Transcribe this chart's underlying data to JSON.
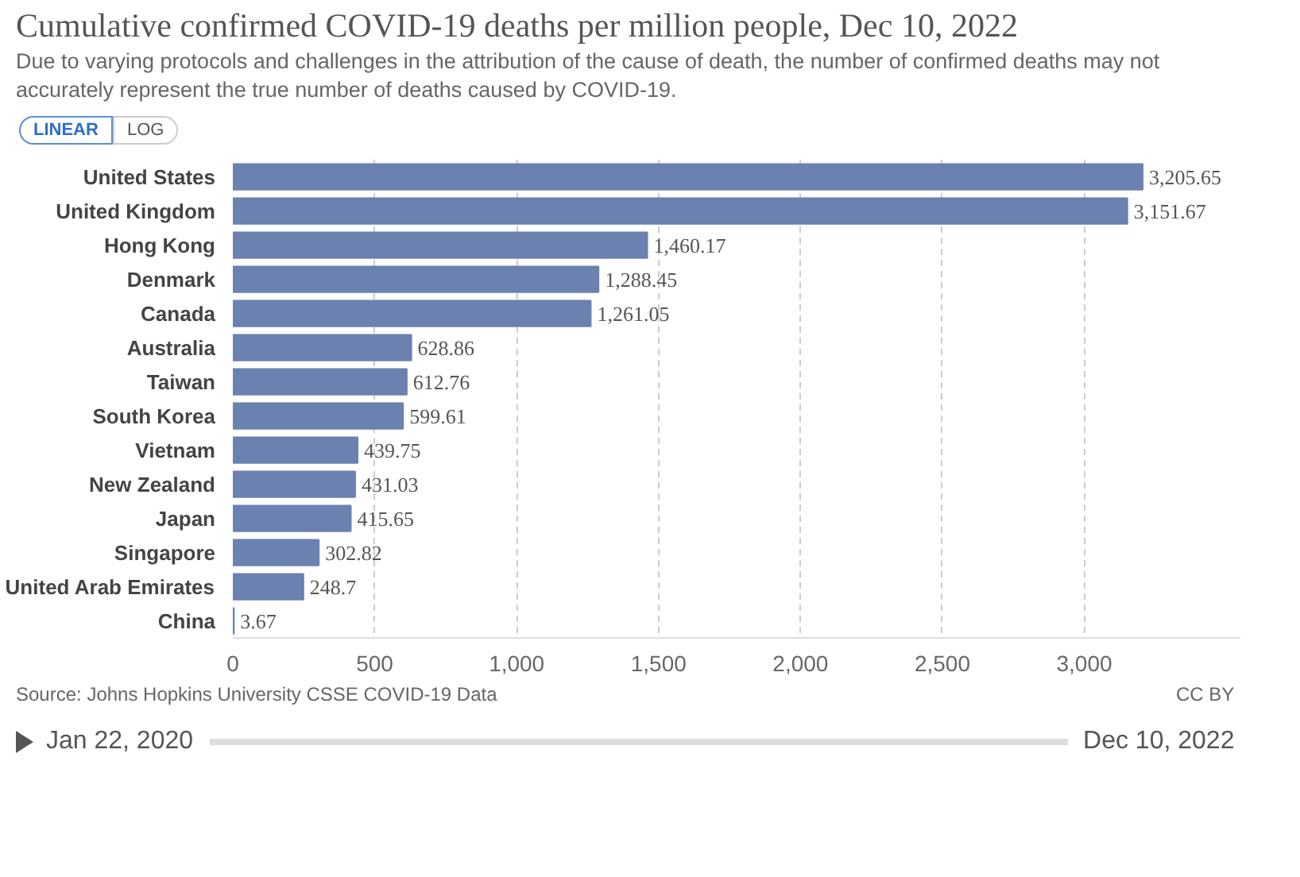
{
  "chart_data": {
    "type": "bar",
    "orientation": "horizontal",
    "title": "Cumulative confirmed COVID-19 deaths per million people, Dec 10, 2022",
    "subtitle": "Due to varying protocols and challenges in the attribution of the cause of death, the number of confirmed deaths may not accurately represent the true number of deaths caused by COVID-19.",
    "categories": [
      "United States",
      "United Kingdom",
      "Hong Kong",
      "Denmark",
      "Canada",
      "Australia",
      "Taiwan",
      "South Korea",
      "Vietnam",
      "New Zealand",
      "Japan",
      "Singapore",
      "United Arab Emirates",
      "China"
    ],
    "values": [
      3205.65,
      3151.67,
      1460.17,
      1288.45,
      1261.05,
      628.86,
      612.76,
      599.61,
      439.75,
      431.03,
      415.65,
      302.82,
      248.7,
      3.67
    ],
    "color": "#6b81b0",
    "xlim": [
      0,
      3550
    ],
    "value_labels": [
      "3,205.65",
      "3,151.67",
      "1,460.17",
      "1,288.45",
      "1,261.05",
      "628.86",
      "612.76",
      "599.61",
      "439.75",
      "431.03",
      "415.65",
      "302.82",
      "248.7",
      "3.67"
    ],
    "xticks": [
      {
        "value": 0,
        "label": "0"
      },
      {
        "value": 500,
        "label": "500"
      },
      {
        "value": 1000,
        "label": "1,000"
      },
      {
        "value": 1500,
        "label": "1,500"
      },
      {
        "value": 2000,
        "label": "2,000"
      },
      {
        "value": 2500,
        "label": "2,500"
      },
      {
        "value": 3000,
        "label": "3,000"
      }
    ],
    "grid": "x",
    "annotations": [
      "Source: Johns Hopkins University CSSE COVID-19 Data",
      "CC BY",
      "LINEAR",
      "LOG",
      "Jan 22, 2020",
      "Dec 10, 2022"
    ]
  }
}
